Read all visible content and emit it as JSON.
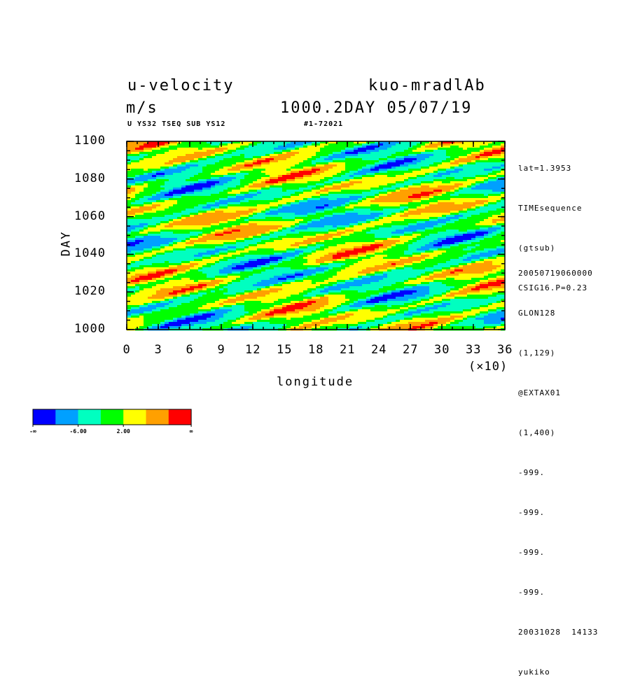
{
  "header": {
    "title_left": "u-velocity",
    "title_right": "kuo-mradlAb",
    "units": "m/s",
    "time_date": "1000.2DAY 05/07/19",
    "subtitle_left": "U YS32 TSEQ SUB YS12",
    "subtitle_right": "#1-72021"
  },
  "right_info": {
    "top": [
      "lat=1.3953",
      "TIMEsequence",
      "(gtsub)",
      "CSIG16.P=0.23"
    ],
    "bottom": [
      "20050719060000",
      "GLON128",
      "(1,129)",
      "@EXTAX01",
      "(1,400)",
      "-999.",
      "-999.",
      "-999.",
      "-999.",
      "20031028  14133",
      "yukiko"
    ]
  },
  "chart_data": {
    "type": "heatmap",
    "title": "u-velocity",
    "xlabel": "longitude",
    "ylabel": "DAY",
    "x_multiplier_label": "(×10)",
    "x_ticks": [
      "0",
      "3",
      "6",
      "9",
      "12",
      "15",
      "18",
      "21",
      "24",
      "27",
      "30",
      "33",
      "36"
    ],
    "y_ticks": [
      "1000",
      "1020",
      "1040",
      "1060",
      "1080",
      "1100"
    ],
    "xlim": [
      0,
      36
    ],
    "ylim": [
      1000,
      1100
    ],
    "colorbar": {
      "colors": [
        "#0000ff",
        "#00a0ff",
        "#00ffc0",
        "#00ff00",
        "#ffff00",
        "#ffa000",
        "#ff0000"
      ],
      "labels": [
        "-∞",
        "-6.00",
        "2.00",
        "∞"
      ]
    }
  }
}
